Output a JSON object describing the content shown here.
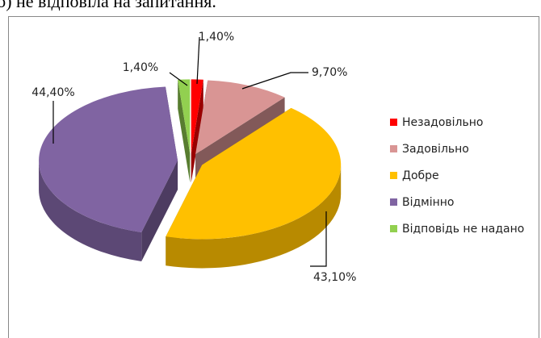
{
  "caption": "б) не відповіла на запитання.",
  "chart_data": {
    "type": "pie3d",
    "categories": [
      "Незадовільно",
      "Задовільно",
      "Добре",
      "Відмінно",
      "Відповідь не надано"
    ],
    "values": [
      1.4,
      9.7,
      43.1,
      44.4,
      1.4
    ],
    "value_labels": [
      "1,40%",
      "9,70%",
      "43,10%",
      "44,40%",
      "1,40%"
    ],
    "colors": [
      "#ff0000",
      "#d99594",
      "#ffc000",
      "#8064a2",
      "#92d050"
    ],
    "legend": "right"
  }
}
